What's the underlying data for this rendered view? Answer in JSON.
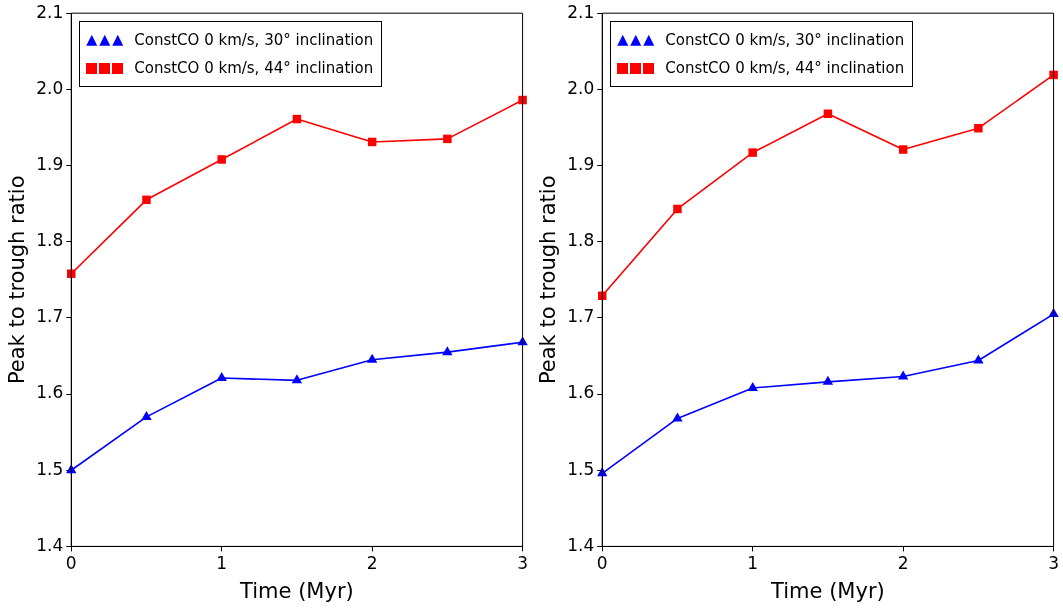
{
  "chart_data": [
    {
      "type": "line",
      "xlabel": "Time (Myr)",
      "ylabel": "Peak to trough ratio",
      "x": [
        0,
        0.5,
        1,
        1.5,
        2,
        2.5,
        3
      ],
      "xlim": [
        0,
        3
      ],
      "xticks": [
        0,
        1,
        2,
        3
      ],
      "ylim": [
        1.4,
        2.1
      ],
      "yticks": [
        1.4,
        1.5,
        1.6,
        1.7,
        1.8,
        1.9,
        {
          "value": 2,
          "label": "2.0"
        },
        2.1
      ],
      "grid": false,
      "legend": "top left",
      "line_style": "solid",
      "series": [
        {
          "name": "ConstCO 0 km/s, 30° inclination",
          "color": "#0000ff",
          "marker": "triangle",
          "values": [
            1.5,
            1.57,
            1.621,
            1.618,
            1.645,
            1.655,
            1.668
          ]
        },
        {
          "name": "ConstCO 0 km/s, 44° inclination",
          "color": "#ff0000",
          "marker": "square",
          "values": [
            1.758,
            1.855,
            1.908,
            1.961,
            1.931,
            1.935,
            1.986
          ]
        }
      ]
    },
    {
      "type": "line",
      "xlabel": "Time (Myr)",
      "ylabel": "Peak to trough ratio",
      "x": [
        0,
        0.5,
        1,
        1.5,
        2,
        2.5,
        3
      ],
      "xlim": [
        0,
        3
      ],
      "xticks": [
        0,
        1,
        2,
        3
      ],
      "ylim": [
        1.4,
        2.1
      ],
      "yticks": [
        1.4,
        1.5,
        1.6,
        1.7,
        1.8,
        1.9,
        {
          "value": 2,
          "label": "2.0"
        },
        2.1
      ],
      "grid": false,
      "legend": "top left",
      "line_style": "solid",
      "series": [
        {
          "name": "ConstCO 0 km/s, 30° inclination",
          "color": "#0000ff",
          "marker": "triangle",
          "values": [
            1.496,
            1.568,
            1.608,
            1.616,
            1.623,
            1.644,
            1.705
          ]
        },
        {
          "name": "ConstCO 0 km/s, 44° inclination",
          "color": "#ff0000",
          "marker": "square",
          "values": [
            1.729,
            1.843,
            1.917,
            1.968,
            1.921,
            1.949,
            2.019
          ]
        }
      ]
    }
  ]
}
